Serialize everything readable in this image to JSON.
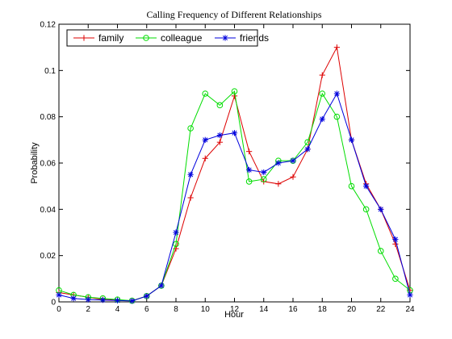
{
  "chart_data": {
    "type": "line",
    "title": "Calling Frequency of Different Relationships",
    "xlabel": "Hour",
    "ylabel": "Probability",
    "xlim": [
      0,
      24
    ],
    "ylim": [
      0,
      0.12
    ],
    "xticks": [
      0,
      2,
      4,
      6,
      8,
      10,
      12,
      14,
      16,
      18,
      20,
      22,
      24
    ],
    "yticks": [
      0,
      0.02,
      0.04,
      0.06,
      0.08,
      0.1,
      0.12
    ],
    "xtick_labels": [
      "0",
      "2",
      "4",
      "6",
      "8",
      "10",
      "12",
      "14",
      "16",
      "18",
      "20",
      "22",
      "24"
    ],
    "ytick_labels": [
      "0",
      "0.02",
      "0.04",
      "0.06",
      "0.08",
      "0.1",
      "0.12"
    ],
    "grid": false,
    "legend_position": "top-left",
    "x": [
      0,
      1,
      2,
      3,
      4,
      5,
      6,
      7,
      8,
      9,
      10,
      11,
      12,
      13,
      14,
      15,
      16,
      17,
      18,
      19,
      20,
      21,
      22,
      23,
      24
    ],
    "series": [
      {
        "name": "family",
        "color": "#dd0000",
        "marker": "plus",
        "values": [
          0.004,
          0.003,
          0.002,
          0.001,
          0.0008,
          0.0005,
          0.0025,
          0.007,
          0.023,
          0.045,
          0.062,
          0.069,
          0.089,
          0.065,
          0.052,
          0.051,
          0.054,
          0.066,
          0.098,
          0.11,
          0.07,
          0.051,
          0.04,
          0.025,
          0.005
        ]
      },
      {
        "name": "colleague",
        "color": "#00dd00",
        "marker": "circle",
        "values": [
          0.005,
          0.003,
          0.002,
          0.0015,
          0.001,
          0.0005,
          0.0025,
          0.007,
          0.025,
          0.075,
          0.09,
          0.085,
          0.091,
          0.052,
          0.053,
          0.061,
          0.061,
          0.069,
          0.09,
          0.08,
          0.05,
          0.04,
          0.022,
          0.01,
          0.005
        ]
      },
      {
        "name": "friends",
        "color": "#0000dd",
        "marker": "star",
        "values": [
          0.003,
          0.0015,
          0.001,
          0.0008,
          0.0006,
          0.0004,
          0.0025,
          0.007,
          0.03,
          0.055,
          0.07,
          0.072,
          0.073,
          0.057,
          0.056,
          0.06,
          0.061,
          0.066,
          0.079,
          0.09,
          0.07,
          0.05,
          0.04,
          0.027,
          0.003
        ]
      }
    ]
  }
}
